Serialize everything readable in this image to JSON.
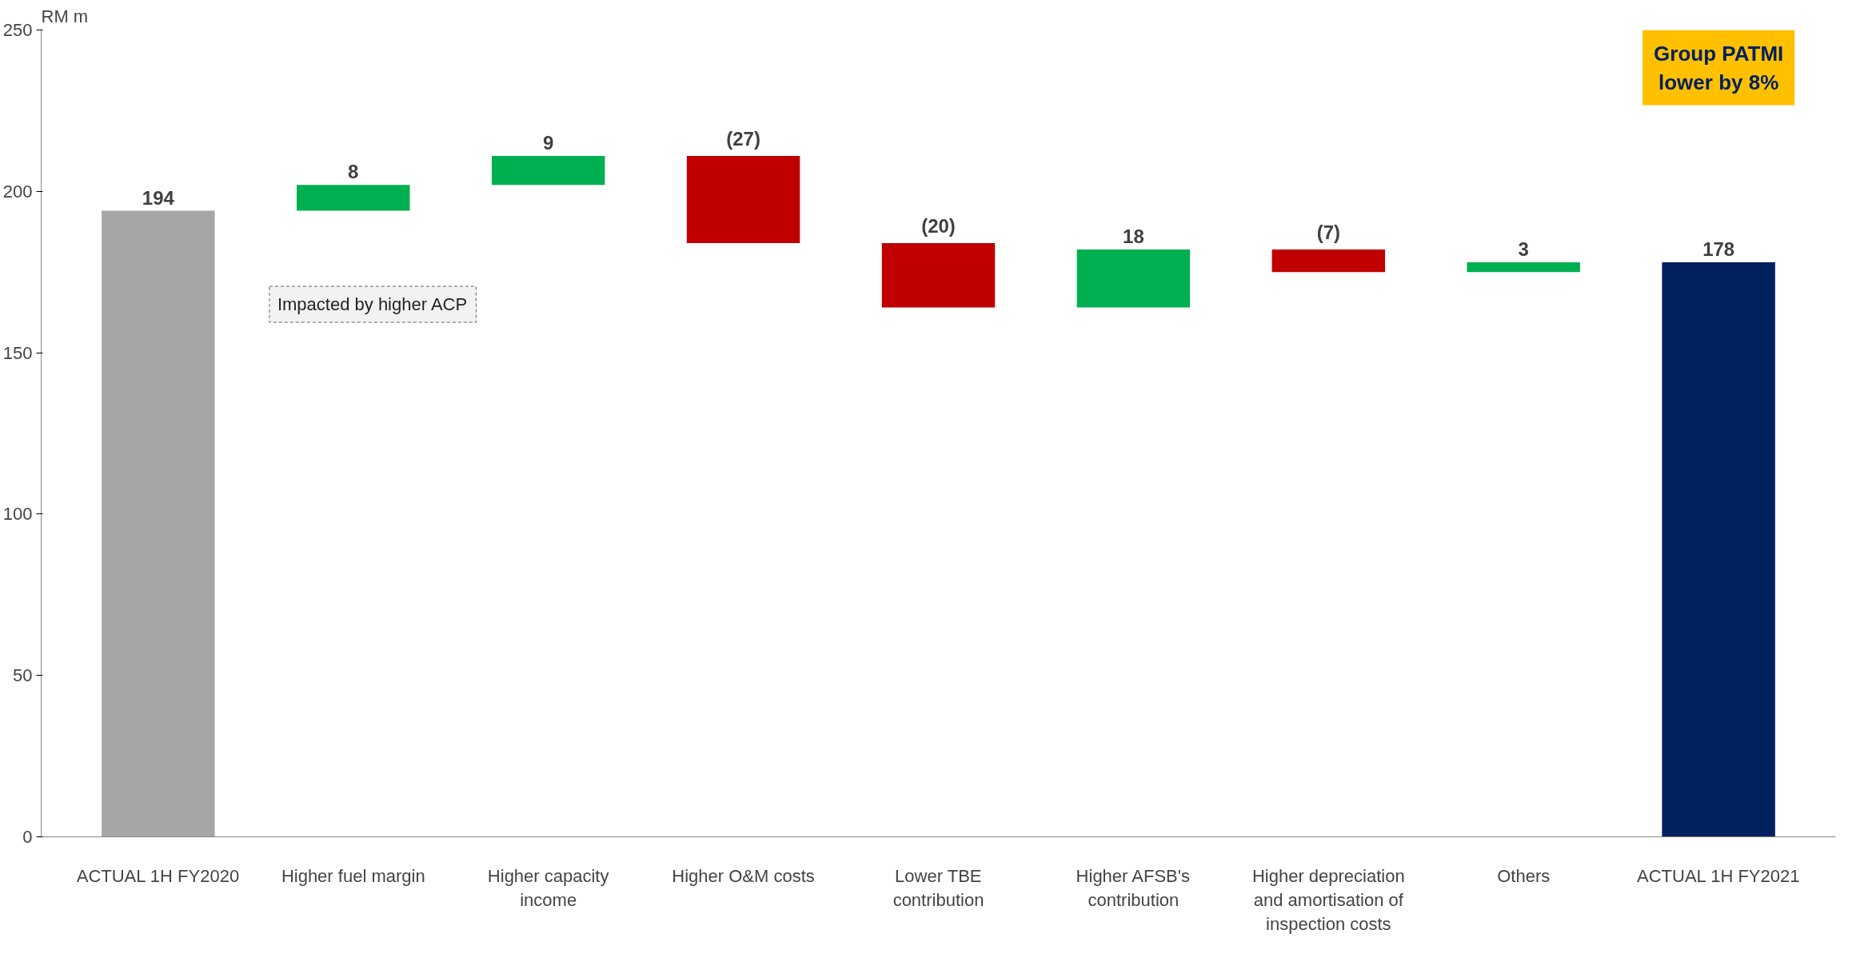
{
  "chart_data": {
    "type": "bar",
    "ylabel": "RM m",
    "categories": [
      "ACTUAL 1H FY2020",
      "Higher fuel margin",
      "Higher capacity income",
      "Higher O&M costs",
      "Lower TBE contribution",
      "Higher AFSB's contribution",
      "Higher depreciation and amortisation of inspection costs",
      "Others",
      "ACTUAL 1H FY2021"
    ],
    "values": [
      194,
      8,
      9,
      -27,
      -20,
      18,
      -7,
      3,
      178
    ],
    "base": [
      0,
      194,
      202,
      211,
      184,
      164,
      182,
      175,
      0
    ],
    "colors": [
      "#a6a6a6",
      "#00b050",
      "#00b050",
      "#c00000",
      "#c00000",
      "#00b050",
      "#c00000",
      "#00b050",
      "#002060"
    ],
    "value_labels": [
      "194",
      "8",
      "9",
      "(27)",
      "(20)",
      "18",
      "(7)",
      "3",
      "178"
    ],
    "ylim": [
      0,
      250
    ],
    "yticks": [
      0,
      50,
      100,
      150,
      200,
      250
    ],
    "grid": false,
    "annotations": [
      "Impacted by higher ACP",
      "Group PATMI lower by 8%"
    ]
  }
}
